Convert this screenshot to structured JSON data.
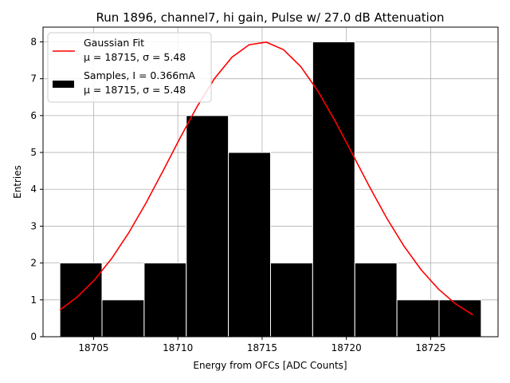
{
  "chart_data": {
    "type": "bar",
    "title": "Run 1896, channel7, hi gain, Pulse w/ 27.0 dB Attenuation",
    "xlabel": "Energy from OFCs [ADC Counts]",
    "ylabel": "Entries",
    "xlim": [
      18702,
      18729
    ],
    "ylim": [
      0,
      8.4
    ],
    "xticks": [
      "18705",
      "18710",
      "18715",
      "18720",
      "18725"
    ],
    "yticks": [
      "0",
      "1",
      "2",
      "3",
      "4",
      "5",
      "6",
      "7",
      "8"
    ],
    "grid": true,
    "legend_position": "top-left",
    "histogram": {
      "name": "Samples, I = 0.366mA",
      "stats": "μ = 18715, σ = 5.48",
      "color": "#000000",
      "bin_edges": [
        18703.0,
        18705.5,
        18708.0,
        18710.5,
        18713.0,
        18715.5,
        18718.0,
        18720.5,
        18723.0,
        18725.5,
        18728.0
      ],
      "counts": [
        2,
        1,
        2,
        6,
        5,
        2,
        8,
        2,
        1,
        1
      ]
    },
    "fit": {
      "name": "Gaussian Fit",
      "stats": "μ = 18715, σ = 5.48",
      "color": "#ff0000",
      "mu": 18715,
      "sigma": 5.48,
      "amplitude": 8.0,
      "x_range": [
        18703.0,
        18727.5
      ]
    }
  }
}
